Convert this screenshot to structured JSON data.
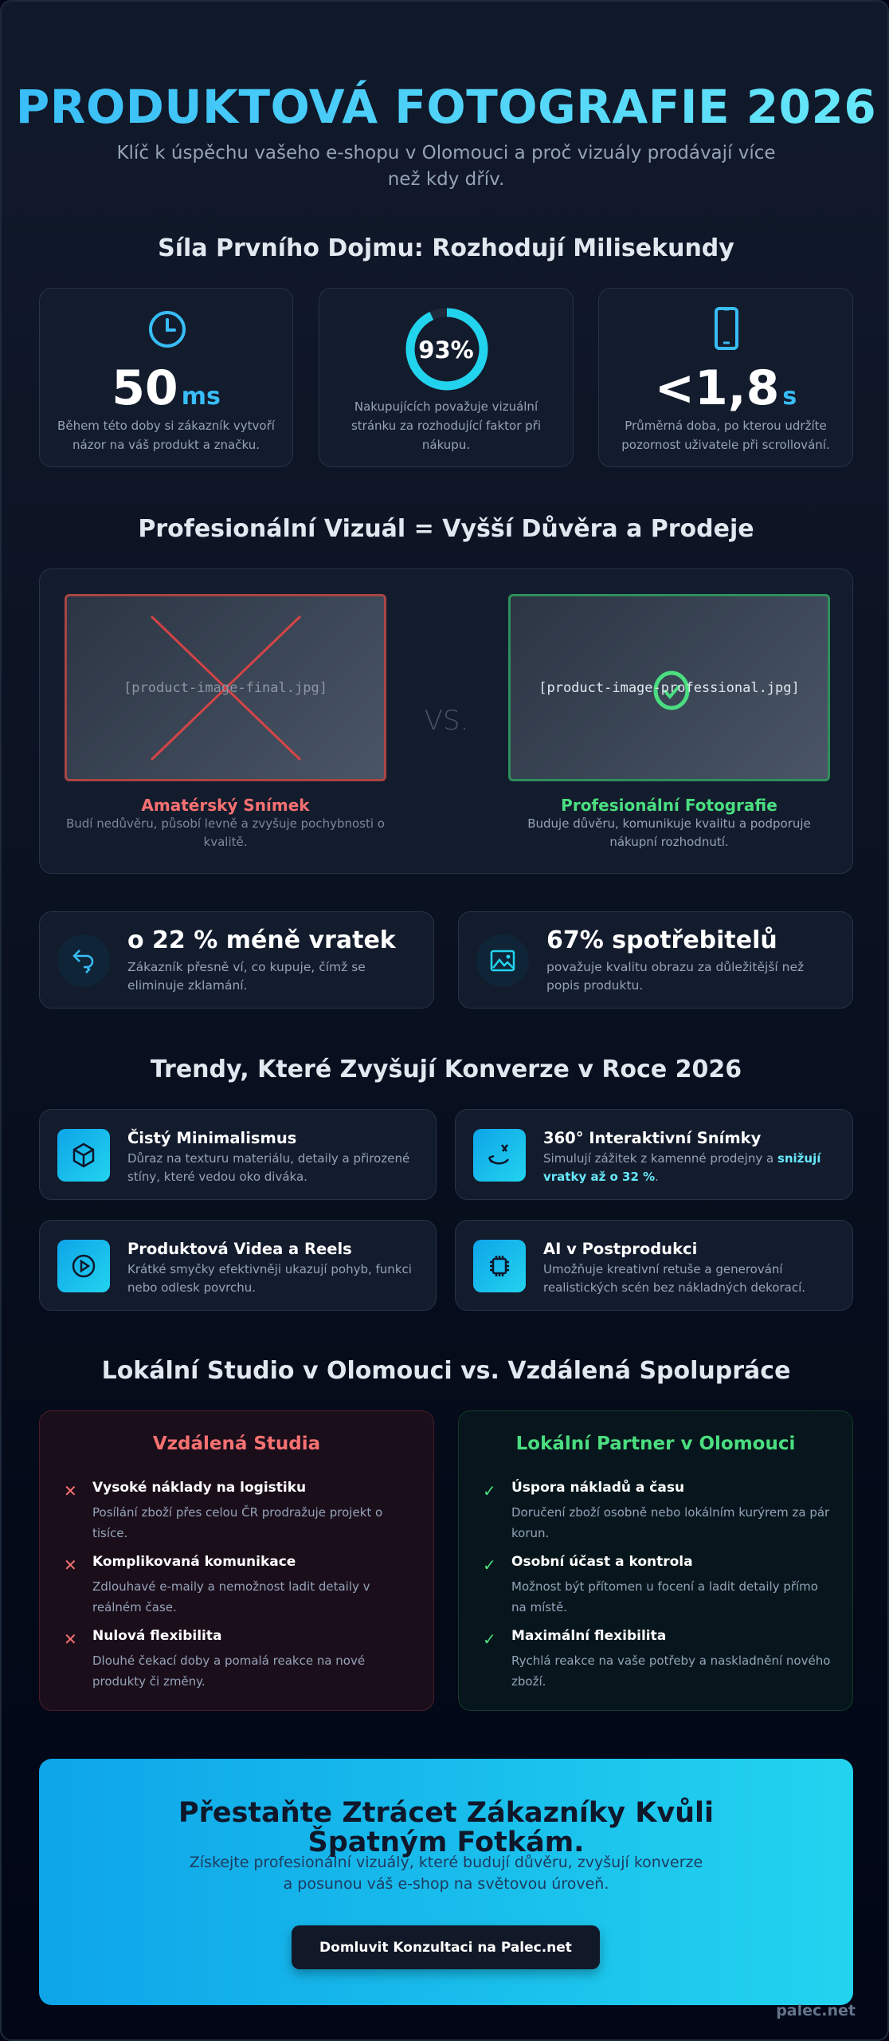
{
  "header": {
    "title": "PRODUKTOVÁ FOTOGRAFIE 2026",
    "subtitle": "Klíč k úspěchu vašeho e-shopu v Olomouci a proč vizuály prodávají více než kdy dřív."
  },
  "impression": {
    "heading": "Síla Prvního Dojmu: Rozhodují Milisekundy",
    "stats": [
      {
        "icon": "clock-icon",
        "value": "50",
        "unit": "ms",
        "desc": "Během této doby si zákazník vytvoří názor na váš produkt a značku."
      },
      {
        "icon": "progress-ring",
        "value": "93%",
        "percent": 93,
        "desc": "Nakupujících považuje vizuální stránku za rozhodující faktor při nákupu."
      },
      {
        "icon": "smartphone-icon",
        "value": "<1,8",
        "unit": "s",
        "desc": "Průměrná doba, po kterou udržíte pozornost uživatele při scrollování."
      }
    ]
  },
  "comparison": {
    "heading": "Profesionální Vizuál = Vyšší Důvěra a Prodeje",
    "vs": "VS.",
    "amateur": {
      "image": "[product-image-final.jpg]",
      "label": "Amatérský Snímek",
      "desc": "Budí nedůvěru, působí levně a zvyšuje pochybnosti o kvalitě.",
      "color": "#f87171"
    },
    "pro": {
      "image": "[product-image-professional.jpg]",
      "label": "Profesionální Fotografie",
      "desc": "Buduje důvěru, komunikuje kvalitu a podporuje nákupní rozhodnutí.",
      "color": "#4ade80"
    }
  },
  "facts": [
    {
      "icon": "return-arrow-icon",
      "title": "o 22 % méně vratek",
      "desc": "Zákazník přesně ví, co kupuje, čímž se eliminuje zklamání."
    },
    {
      "icon": "image-icon",
      "title": "67% spotřebitelů",
      "desc": "považuje kvalitu obrazu za důležitější než popis produktu."
    }
  ],
  "trends": {
    "heading": "Trendy, Které Zvyšují Konverze v Roce 2026",
    "items": [
      {
        "icon": "cube-icon",
        "title": "Čistý Minimalismus",
        "desc": "Důraz na texturu materiálu, detaily a přirozené stíny, které vedou oko diváka."
      },
      {
        "icon": "rotate-360-icon",
        "title": "360° Interaktivní Snímky",
        "desc": "Simulují zážitek z kamenné prodejny a ",
        "highlight": "snižují vratky až o 32 %",
        "desc_end": "."
      },
      {
        "icon": "play-icon",
        "title": "Produktová Videa a Reels",
        "desc": "Krátké smyčky efektivněji ukazují pohyb, funkci nebo odlesk povrchu."
      },
      {
        "icon": "chip-icon",
        "title": "AI v Postprodukci",
        "desc": "Umožňuje kreativní retuše a generování realistických scén bez nákladných dekorací."
      }
    ]
  },
  "local": {
    "heading": "Lokální Studio v Olomouci vs. Vzdálená Spolupráce",
    "remote": {
      "title": "Vzdálená Studia",
      "marker": "✕",
      "items": [
        {
          "title": "Vysoké náklady na logistiku",
          "desc": "Posílání zboží přes celou ČR prodražuje projekt o tisíce."
        },
        {
          "title": "Komplikovaná komunikace",
          "desc": "Zdlouhavé e-maily a nemožnost ladit detaily v reálném čase."
        },
        {
          "title": "Nulová flexibilita",
          "desc": "Dlouhé čekací doby a pomalá reakce na nové produkty či změny."
        }
      ]
    },
    "partner": {
      "title": "Lokální Partner v Olomouci",
      "marker": "✓",
      "items": [
        {
          "title": "Úspora nákladů a času",
          "desc": "Doručení zboží osobně nebo lokálním kurýrem za pár korun."
        },
        {
          "title": "Osobní účast a kontrola",
          "desc": "Možnost být přítomen u focení a ladit detaily přímo na místě."
        },
        {
          "title": "Maximální flexibilita",
          "desc": "Rychlá reakce na vaše potřeby a naskladnění nového zboží."
        }
      ]
    }
  },
  "cta": {
    "title": "Přestaňte Ztrácet Zákazníky Kvůli Špatným Fotkám.",
    "text": "Získejte profesionální vizuály, které budují důvěru, zvyšují konverze a posunou váš e-shop na světovou úroveň.",
    "button": "Domluvit Konzultaci na Palec.net"
  },
  "brand": "palec.net",
  "colors": {
    "accent": "#38bdf8",
    "cyan": "#22d3ee",
    "red": "#f87171",
    "green": "#4ade80",
    "background": "#0b1222"
  }
}
